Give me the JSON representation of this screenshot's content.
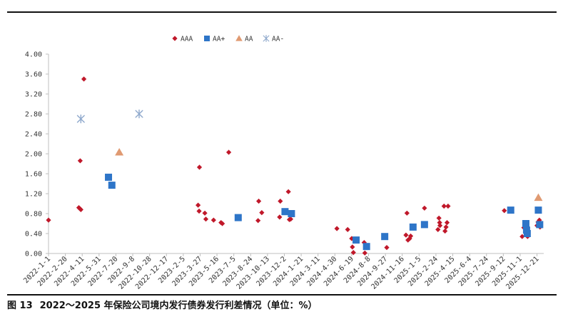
{
  "caption": {
    "figure_no": "图 13",
    "title": "2022～2025 年保险公司境内发行债券发行利差情况（单位：%）"
  },
  "colors": {
    "AAA": "#c0182a",
    "AA+": "#2e75c8",
    "AA": "#e09a72",
    "AA-": "#8ea8cc",
    "axis": "#bfbfbf",
    "text": "#333333"
  },
  "chart_data": {
    "type": "scatter",
    "title": "",
    "xlabel": "",
    "ylabel": "",
    "ylim": [
      0,
      4.0
    ],
    "yticks": [
      "0.00",
      "0.40",
      "0.80",
      "1.20",
      "1.60",
      "2.00",
      "2.40",
      "2.80",
      "3.20",
      "3.60",
      "4.00"
    ],
    "xlim": [
      "2022-01-01",
      "2026-01-10"
    ],
    "xticks": [
      "2022-1-1",
      "2022-2-20",
      "2022-4-11",
      "2022-5-31",
      "2022-7-20",
      "2022-9-8",
      "2022-10-28",
      "2022-12-17",
      "2023-2-5",
      "2023-3-27",
      "2023-5-16",
      "2023-7-5",
      "2023-8-24",
      "2023-10-13",
      "2023-12-2",
      "2024-1-21",
      "2024-3-11",
      "2024-4-30",
      "2024-6-19",
      "2024-8-8",
      "2024-9-27",
      "2024-11-16",
      "2025-1-5",
      "2025-2-24",
      "2025-4-15",
      "2025-6-4",
      "2025-7-24",
      "2025-9-12",
      "2025-11-1",
      "2025-12-21"
    ],
    "grid": false,
    "legend_position": "top",
    "series": [
      {
        "name": "AAA",
        "marker": "diamond",
        "points": [
          {
            "x": "2022-01-01",
            "y": 0.67
          },
          {
            "x": "2022-04-01",
            "y": 0.92
          },
          {
            "x": "2022-04-04",
            "y": 0.9
          },
          {
            "x": "2022-04-07",
            "y": 0.88
          },
          {
            "x": "2022-04-05",
            "y": 1.86
          },
          {
            "x": "2022-04-16",
            "y": 3.5
          },
          {
            "x": "2023-03-21",
            "y": 0.97
          },
          {
            "x": "2023-03-24",
            "y": 0.85
          },
          {
            "x": "2023-03-25",
            "y": 1.73
          },
          {
            "x": "2023-04-10",
            "y": 0.81
          },
          {
            "x": "2023-04-13",
            "y": 0.69
          },
          {
            "x": "2023-05-06",
            "y": 0.67
          },
          {
            "x": "2023-05-28",
            "y": 0.62
          },
          {
            "x": "2023-06-01",
            "y": 0.6
          },
          {
            "x": "2023-06-20",
            "y": 2.03
          },
          {
            "x": "2023-09-15",
            "y": 0.66
          },
          {
            "x": "2023-09-17",
            "y": 1.05
          },
          {
            "x": "2023-09-26",
            "y": 0.82
          },
          {
            "x": "2023-11-18",
            "y": 0.73
          },
          {
            "x": "2023-11-20",
            "y": 1.05
          },
          {
            "x": "2023-12-09",
            "y": 0.83
          },
          {
            "x": "2023-12-14",
            "y": 1.24
          },
          {
            "x": "2023-12-17",
            "y": 0.68
          },
          {
            "x": "2023-12-21",
            "y": 0.69
          },
          {
            "x": "2024-05-06",
            "y": 0.5
          },
          {
            "x": "2024-06-07",
            "y": 0.48
          },
          {
            "x": "2024-06-19",
            "y": 0.3
          },
          {
            "x": "2024-06-21",
            "y": 0.13
          },
          {
            "x": "2024-06-24",
            "y": 0.02
          },
          {
            "x": "2024-07-26",
            "y": 0.22
          },
          {
            "x": "2024-07-28",
            "y": 0.01
          },
          {
            "x": "2024-10-01",
            "y": 0.12
          },
          {
            "x": "2024-11-27",
            "y": 0.37
          },
          {
            "x": "2024-11-30",
            "y": 0.81
          },
          {
            "x": "2024-12-03",
            "y": 0.27
          },
          {
            "x": "2024-12-08",
            "y": 0.3
          },
          {
            "x": "2024-12-11",
            "y": 0.35
          },
          {
            "x": "2025-01-21",
            "y": 0.91
          },
          {
            "x": "2025-03-02",
            "y": 0.48
          },
          {
            "x": "2025-03-05",
            "y": 0.71
          },
          {
            "x": "2025-03-07",
            "y": 0.62
          },
          {
            "x": "2025-03-08",
            "y": 0.56
          },
          {
            "x": "2025-03-20",
            "y": 0.95
          },
          {
            "x": "2025-03-23",
            "y": 0.45
          },
          {
            "x": "2025-03-26",
            "y": 0.53
          },
          {
            "x": "2025-03-29",
            "y": 0.62
          },
          {
            "x": "2025-04-01",
            "y": 0.95
          },
          {
            "x": "2025-09-15",
            "y": 0.86
          },
          {
            "x": "2025-11-07",
            "y": 0.34
          },
          {
            "x": "2025-11-12",
            "y": 0.52
          },
          {
            "x": "2025-11-15",
            "y": 0.55
          },
          {
            "x": "2025-11-23",
            "y": 0.34
          },
          {
            "x": "2025-12-21",
            "y": 0.56
          },
          {
            "x": "2025-12-24",
            "y": 0.63
          },
          {
            "x": "2025-12-28",
            "y": 0.67
          },
          {
            "x": "2025-12-30",
            "y": 0.53
          }
        ]
      },
      {
        "name": "AA+",
        "marker": "square",
        "points": [
          {
            "x": "2022-06-28",
            "y": 1.53
          },
          {
            "x": "2022-07-08",
            "y": 1.37
          },
          {
            "x": "2023-07-18",
            "y": 0.72
          },
          {
            "x": "2023-12-04",
            "y": 0.84
          },
          {
            "x": "2023-12-23",
            "y": 0.8
          },
          {
            "x": "2024-07-02",
            "y": 0.27
          },
          {
            "x": "2024-08-02",
            "y": 0.14
          },
          {
            "x": "2024-09-25",
            "y": 0.34
          },
          {
            "x": "2024-12-18",
            "y": 0.53
          },
          {
            "x": "2025-01-21",
            "y": 0.58
          },
          {
            "x": "2025-10-04",
            "y": 0.87
          },
          {
            "x": "2025-11-18",
            "y": 0.6
          },
          {
            "x": "2025-11-20",
            "y": 0.47
          },
          {
            "x": "2025-11-22",
            "y": 0.4
          },
          {
            "x": "2025-12-25",
            "y": 0.87
          },
          {
            "x": "2025-12-29",
            "y": 0.58
          }
        ]
      },
      {
        "name": "AA",
        "marker": "triangle",
        "points": [
          {
            "x": "2022-07-30",
            "y": 2.03
          },
          {
            "x": "2025-12-25",
            "y": 1.12
          }
        ]
      },
      {
        "name": "AA-",
        "marker": "asterisk",
        "points": [
          {
            "x": "2022-04-07",
            "y": 2.7
          },
          {
            "x": "2022-09-27",
            "y": 2.8
          }
        ]
      }
    ]
  }
}
